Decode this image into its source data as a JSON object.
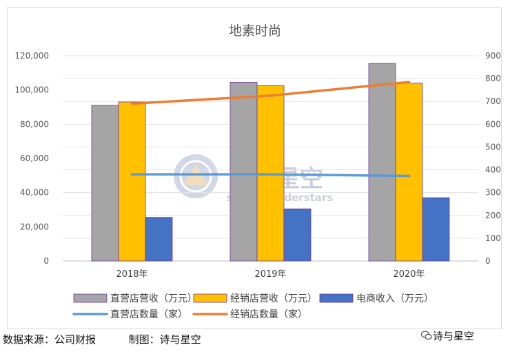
{
  "chart_data": {
    "type": "bar",
    "title": "地素时尚",
    "categories": [
      "2018年",
      "2019年",
      "2020年"
    ],
    "series": [
      {
        "name": "直营店营收（万元）",
        "kind": "bar",
        "axis": "left",
        "color": "#a5a5a5",
        "values": [
          91000,
          104500,
          115500
        ]
      },
      {
        "name": "经销店营收（万元）",
        "kind": "bar",
        "axis": "left",
        "color": "#ffc000",
        "values": [
          93000,
          102500,
          104000
        ]
      },
      {
        "name": "电商收入（万元）",
        "kind": "bar",
        "axis": "left",
        "color": "#4472c4",
        "values": [
          25500,
          30500,
          37000
        ]
      },
      {
        "name": "直营店数量（家）",
        "kind": "line",
        "axis": "right",
        "color": "#5b9bd5",
        "values": [
          380,
          380,
          373
        ]
      },
      {
        "name": "经销店数量（家）",
        "kind": "line",
        "axis": "right",
        "color": "#ed7d31",
        "values": [
          690,
          725,
          785
        ]
      }
    ],
    "y_left": {
      "min": 0,
      "max": 120000,
      "ticks": [
        "0",
        "20,000",
        "40,000",
        "60,000",
        "80,000",
        "100,000",
        "120,000"
      ]
    },
    "y_right": {
      "min": 0,
      "max": 900,
      "ticks": [
        "0",
        "100",
        "200",
        "300",
        "400",
        "500",
        "600",
        "700",
        "800",
        "900"
      ]
    },
    "grid": true,
    "legend": "bottom"
  },
  "watermark": {
    "cn": "诗与星空",
    "en": "singingunderstars"
  },
  "footer": {
    "source": "数据来源：公司财报          制图：诗与星空",
    "account": "诗与星空"
  }
}
